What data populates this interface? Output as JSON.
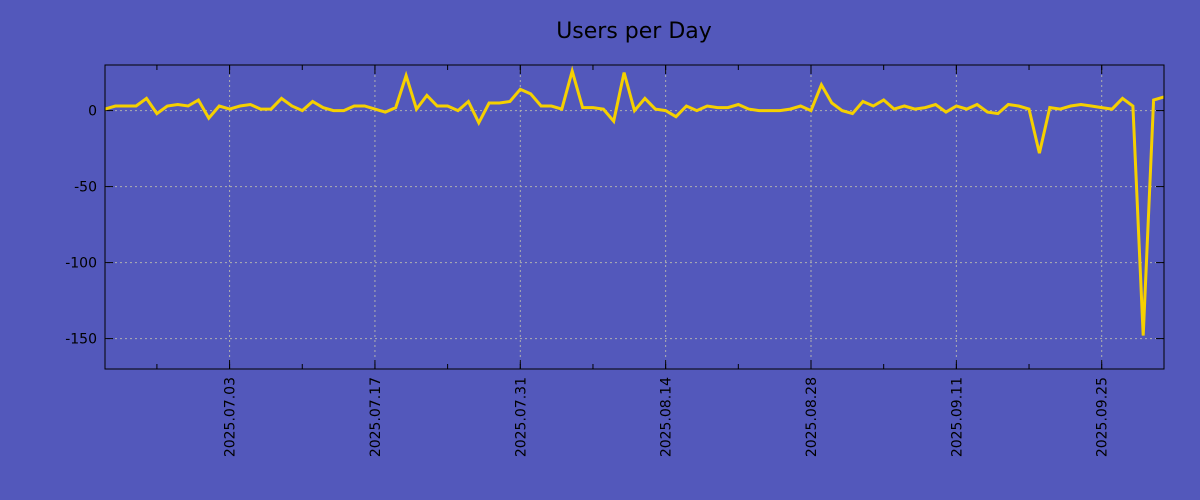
{
  "chart_data": {
    "type": "line",
    "title": "Users per Day",
    "xlabel": "",
    "ylabel": "",
    "start_date": "2025-06-21",
    "end_date": "2025-10-01",
    "ylim": [
      -170,
      30
    ],
    "grid": true,
    "y_ticks": [
      0,
      -50,
      -100,
      -150
    ],
    "y_tick_labels": [
      "0",
      "-50",
      "-100",
      "-150"
    ],
    "x_ticks": [
      "2025-07-03",
      "2025-07-17",
      "2025-07-31",
      "2025-08-14",
      "2025-08-28",
      "2025-09-11",
      "2025-09-25"
    ],
    "x_tick_labels": [
      "2025.07.03",
      "2025.07.17",
      "2025.07.31",
      "2025.08.14",
      "2025.08.28",
      "2025.09.11",
      "2025.09.25"
    ],
    "series": [
      {
        "name": "Users",
        "color": "#f5d000",
        "values": [
          1,
          3,
          3,
          3,
          8,
          -2,
          3,
          4,
          3,
          7,
          -5,
          3,
          1,
          3,
          4,
          1,
          1,
          8,
          3,
          0,
          6,
          2,
          0,
          0,
          3,
          3,
          1,
          -1,
          2,
          23,
          1,
          10,
          3,
          3,
          0,
          6,
          -8,
          5,
          5,
          6,
          14,
          11,
          3,
          3,
          1,
          26,
          2,
          2,
          1,
          -7,
          25,
          0,
          8,
          1,
          0,
          -4,
          3,
          0,
          3,
          2,
          2,
          4,
          1,
          0,
          0,
          0,
          1,
          3,
          0,
          17,
          5,
          0,
          -2,
          6,
          3,
          7,
          1,
          3,
          1,
          2,
          4,
          -1,
          3,
          1,
          4,
          -1,
          -2,
          4,
          3,
          1,
          -28,
          2,
          1,
          3,
          4,
          3,
          2,
          1,
          8,
          3,
          -148,
          7,
          9
        ]
      }
    ]
  },
  "colors": {
    "background": "#5358bb",
    "line": "#f5d000",
    "grid": "#b0b0b0"
  }
}
